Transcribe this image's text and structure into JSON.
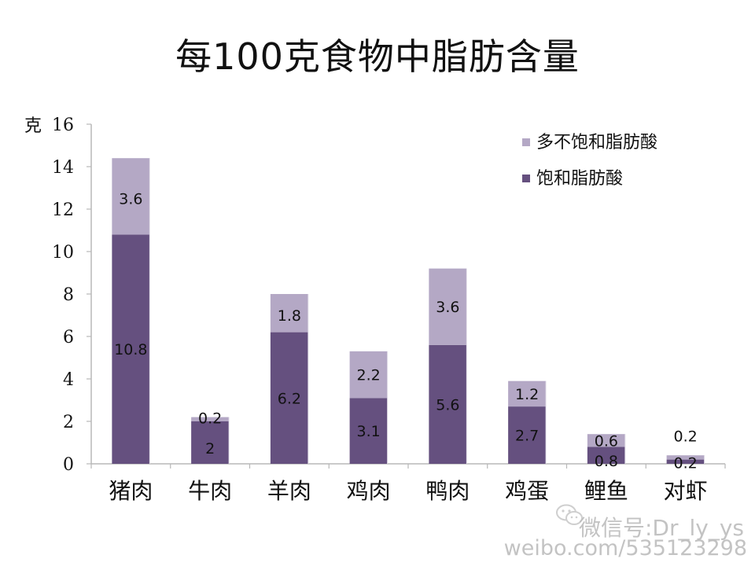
{
  "chart_data": {
    "type": "bar",
    "stacked": true,
    "title": "每100克食物中脂肪含量",
    "ylabel": "克",
    "xlabel": "",
    "ylim": [
      0,
      16
    ],
    "yticks": [
      0,
      2,
      4,
      6,
      8,
      10,
      12,
      14,
      16
    ],
    "categories": [
      "猪肉",
      "牛肉",
      "羊肉",
      "鸡肉",
      "鸭肉",
      "鸡蛋",
      "鲤鱼",
      "对虾"
    ],
    "series": [
      {
        "name": "饱和脂肪酸",
        "color": "#65507f",
        "values": [
          10.8,
          2,
          6.2,
          3.1,
          5.6,
          2.7,
          0.8,
          0.2
        ]
      },
      {
        "name": "多不饱和脂肪酸",
        "color": "#b4a8c5",
        "values": [
          3.6,
          0.2,
          1.8,
          2.2,
          3.6,
          1.2,
          0.6,
          0.2
        ]
      }
    ],
    "legend_position": "top-right",
    "grid": false
  },
  "watermark": {
    "line1": "微信号:Dr_ly_ys",
    "line2": "weibo.com/535123298",
    "icon": "wechat-icon"
  }
}
